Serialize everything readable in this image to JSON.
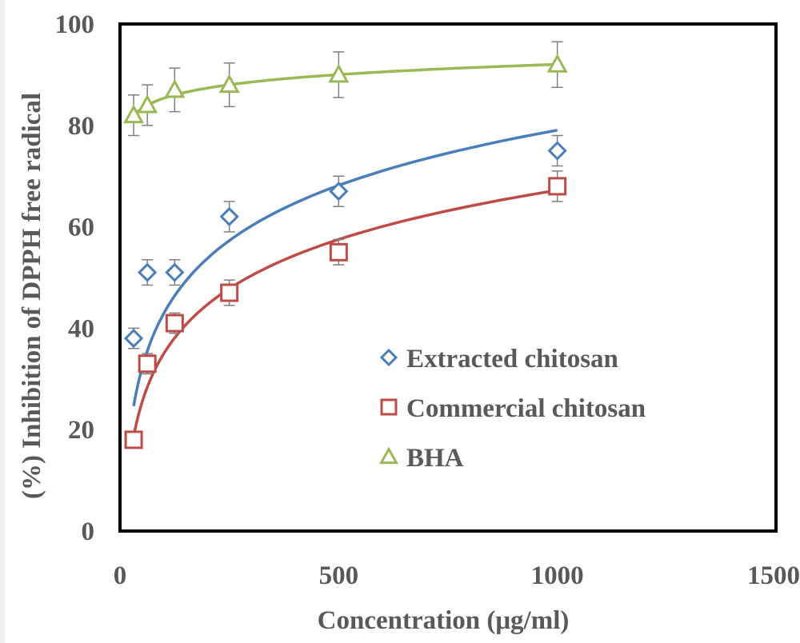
{
  "chart_data": {
    "type": "scatter",
    "title": "",
    "xlabel": "Concentration (μg/ml)",
    "ylabel": "(%) Inhibition of DPPH free radical",
    "xlim": [
      0,
      1500
    ],
    "ylim": [
      0,
      100
    ],
    "xticks": [
      0,
      500,
      1000,
      1500
    ],
    "yticks": [
      0,
      20,
      40,
      60,
      80,
      100
    ],
    "grid": false,
    "legend_position": "bottom-right",
    "trendline": "logarithmic",
    "series": [
      {
        "name": "Extracted chitosan",
        "marker": "diamond",
        "color": "#4a7ebb",
        "x": [
          31.25,
          62.5,
          125,
          250,
          500,
          1000
        ],
        "y": [
          38,
          51,
          51,
          62,
          67,
          75
        ],
        "error": [
          2,
          2.5,
          2.5,
          3,
          3,
          3
        ],
        "fit": {
          "a": 15.7,
          "b": -29.4
        }
      },
      {
        "name": "Commercial chitosan",
        "marker": "square",
        "color": "#be4b48",
        "x": [
          31.25,
          62.5,
          125,
          250,
          500,
          1000
        ],
        "y": [
          18,
          33,
          41,
          47,
          55,
          68
        ],
        "error": [
          1.5,
          2,
          2,
          2.5,
          2.5,
          3
        ],
        "fit": {
          "a": 14,
          "b": -29.5
        }
      },
      {
        "name": "BHA",
        "marker": "triangle",
        "color": "#98b954",
        "x": [
          31.25,
          62.5,
          125,
          250,
          500,
          1000
        ],
        "y": [
          82,
          84,
          87,
          88,
          90,
          92
        ],
        "error": [
          4,
          4,
          4.3,
          4.3,
          4.5,
          4.5
        ],
        "fit": {
          "a": 2.9,
          "b": 72
        }
      }
    ]
  }
}
